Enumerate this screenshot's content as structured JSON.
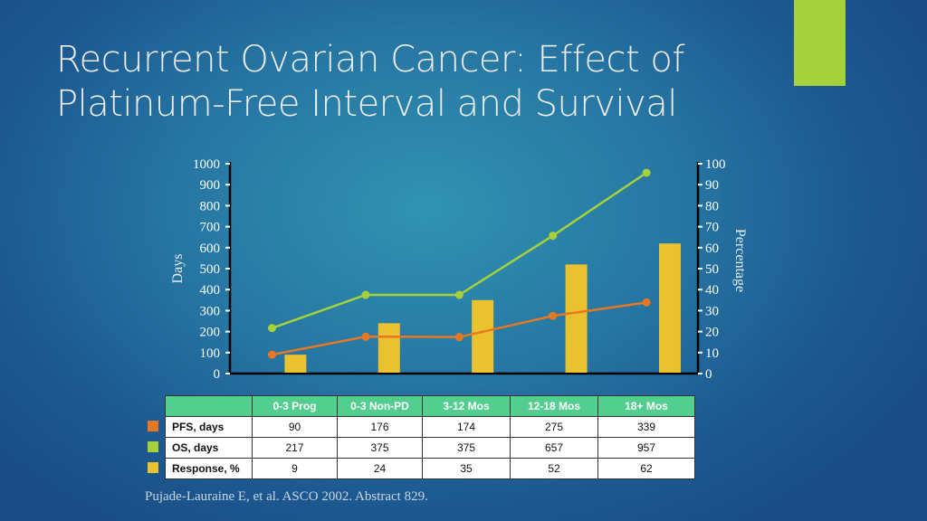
{
  "slide": {
    "title_line1": "Recurrent Ovarian Cancer: Effect of",
    "title_line2": "Platinum-Free Interval and Survival",
    "citation": "Pujade-Lauraine E, et al. ASCO 2002. Abstract 829.",
    "accent_color": "#a6d13a"
  },
  "chart_data": {
    "type": "bar+line",
    "categories": [
      "0-3 Prog",
      "0-3 Non-PD",
      "3-12 Mos",
      "12-18 Mos",
      "18+ Mos"
    ],
    "ylabel": "Days",
    "y2label": "Percentage",
    "ylim": [
      0,
      1000
    ],
    "y2lim": [
      0,
      100
    ],
    "yticks": [
      "0",
      "100",
      "200",
      "300",
      "400",
      "500",
      "600",
      "700",
      "800",
      "900",
      "1000"
    ],
    "y2ticks": [
      "0",
      "10",
      "20",
      "30",
      "40",
      "50",
      "60",
      "70",
      "80",
      "90",
      "100"
    ],
    "grid": false,
    "series": [
      {
        "name": "PFS, days",
        "type": "line",
        "axis": "left",
        "color": "#e87722",
        "values": [
          90,
          176,
          174,
          275,
          339
        ]
      },
      {
        "name": "OS, days",
        "type": "line",
        "axis": "left",
        "color": "#a6d13a",
        "values": [
          217,
          375,
          375,
          657,
          957
        ]
      },
      {
        "name": "Response, %",
        "type": "bar",
        "axis": "right",
        "color": "#eac12f",
        "values": [
          9,
          24,
          35,
          52,
          62
        ]
      }
    ]
  }
}
